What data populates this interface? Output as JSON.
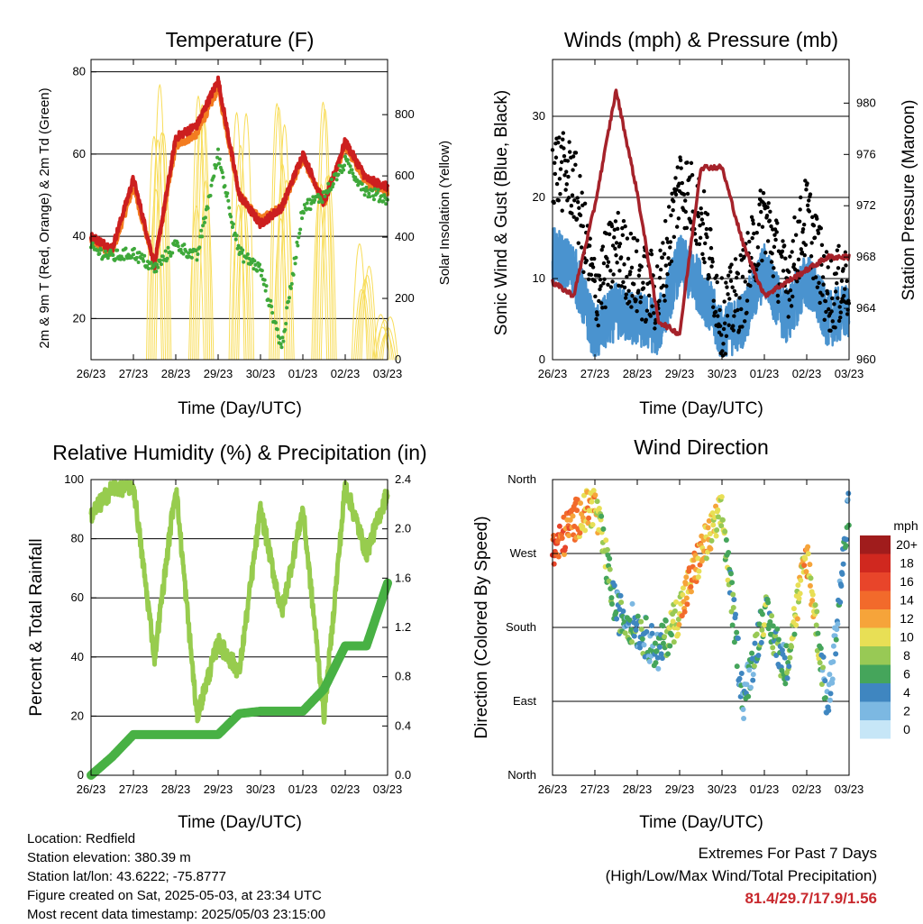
{
  "colors": {
    "temp_2m": "#cc1f1f",
    "temp_9m": "#f37c20",
    "dewpoint": "#3ea83a",
    "solar": "#f8dd5a",
    "wind_speed": "#4a93cf",
    "wind_gust": "#000000",
    "pressure": "#a5222a",
    "rh": "#97cc4e",
    "precip": "#48b144"
  },
  "x_ticks": [
    "26/23",
    "27/23",
    "28/23",
    "29/23",
    "30/23",
    "01/23",
    "02/23",
    "03/23"
  ],
  "panels": {
    "temperature": {
      "title": "Temperature (F)",
      "ylabel_left": "2m & 9m T (Red, Orange) & 2m Td (Green)",
      "ylabel_right": "Solar Insolation (Yellow)",
      "xlabel": "Time (Day/UTC)",
      "left_ticks": [
        "20",
        "40",
        "60",
        "80"
      ],
      "right_ticks": [
        "0",
        "200",
        "400",
        "600",
        "800"
      ]
    },
    "winds": {
      "title": "Winds (mph) & Pressure (mb)",
      "ylabel_left": "Sonic Wind & Gust (Blue, Black)",
      "ylabel_right": "Station Pressure (Maroon)",
      "xlabel": "Time (Day/UTC)",
      "left_ticks": [
        "0",
        "10",
        "20",
        "30"
      ],
      "right_ticks": [
        "960",
        "964",
        "968",
        "972",
        "976",
        "980"
      ]
    },
    "humidity": {
      "title": "Relative Humidity (%) & Precipitation (in)",
      "ylabel_left": "Percent & Total Rainfall",
      "xlabel": "Time (Day/UTC)",
      "left_ticks": [
        "0",
        "20",
        "40",
        "60",
        "80",
        "100"
      ],
      "right_ticks": [
        "0.0",
        "0.4",
        "0.8",
        "1.2",
        "1.6",
        "2.0",
        "2.4"
      ]
    },
    "direction": {
      "title": "Wind Direction",
      "ylabel_left": "Direction (Colored By Speed)",
      "xlabel": "Time (Day/UTC)",
      "left_ticks": [
        "North",
        "East",
        "South",
        "West",
        "North"
      ],
      "legend_title": "mph",
      "legend_labels": [
        "20+",
        "18",
        "16",
        "14",
        "12",
        "10",
        "8",
        "6",
        "4",
        "2",
        "0"
      ],
      "legend_colors": [
        "#a01c1c",
        "#d0281f",
        "#e8452a",
        "#f26a2b",
        "#f6a43a",
        "#e8df55",
        "#98c955",
        "#45a55b",
        "#3f86c0",
        "#7cb8e2",
        "#c6e6f7"
      ]
    }
  },
  "footer": {
    "location": "Location: Redfield",
    "elevation": "Station elevation: 380.39 m",
    "latlon": "Station lat/lon: 43.6222; -75.8777",
    "created": "Figure created on Sat, 2025-05-03, at 23:34 UTC",
    "recent": "Most recent data timestamp: 2025/05/03 23:15:00"
  },
  "extremes": {
    "heading": "Extremes For Past 7 Days",
    "subheading": "(High/Low/Max Wind/Total Precipitation)",
    "values": "81.4/29.7/17.9/1.56"
  },
  "chart_data": [
    {
      "type": "line",
      "title": "Temperature (F)",
      "xlabel": "Time (Day/UTC)",
      "ylabel": "2m & 9m T (Red, Orange) & 2m Td (Green)",
      "ylabel_right": "Solar Insolation (Yellow)",
      "x_days": [
        0,
        0.5,
        1,
        1.5,
        2,
        2.5,
        3,
        3.5,
        4,
        4.5,
        5,
        5.5,
        6,
        6.5,
        7
      ],
      "ylim": [
        10,
        83
      ],
      "ylim_right": [
        0,
        980
      ],
      "series": [
        {
          "name": "2m T",
          "values": [
            40,
            37,
            54,
            33,
            64,
            67,
            78,
            50,
            43,
            47,
            60,
            48,
            63,
            54,
            52
          ]
        },
        {
          "name": "9m T",
          "values": [
            39,
            36,
            52,
            33,
            62,
            65,
            76,
            50,
            44,
            47,
            59,
            48,
            62,
            53,
            51
          ]
        },
        {
          "name": "2m Td",
          "values": [
            37,
            35,
            36,
            32,
            38,
            35,
            60,
            36,
            32,
            13,
            47,
            50,
            58,
            51,
            49
          ]
        },
        {
          "name": "Solar Insolation",
          "values": [
            0,
            0,
            0,
            900,
            0,
            920,
            0,
            910,
            0,
            900,
            0,
            880,
            0,
            420,
            0
          ]
        }
      ]
    },
    {
      "type": "line",
      "title": "Winds (mph) & Pressure (mb)",
      "xlabel": "Time (Day/UTC)",
      "ylabel": "Sonic Wind & Gust (Blue, Black)",
      "ylabel_right": "Station Pressure (Maroon)",
      "x_days": [
        0,
        0.5,
        1,
        1.5,
        2,
        2.5,
        3,
        3.5,
        4,
        4.5,
        5,
        5.5,
        6,
        6.5,
        7
      ],
      "ylim": [
        0,
        37
      ],
      "ylim_right": [
        960,
        983.4
      ],
      "series": [
        {
          "name": "Sonic Wind",
          "values": [
            13,
            11,
            3,
            6,
            5,
            4,
            12,
            9,
            3,
            5,
            11,
            5,
            10,
            5,
            6
          ]
        },
        {
          "name": "Gust",
          "values": [
            24,
            22,
            8,
            14,
            10,
            8,
            22,
            18,
            5,
            9,
            18,
            9,
            18,
            8,
            10
          ]
        },
        {
          "name": "Station Pressure",
          "values": [
            966,
            965,
            972,
            981,
            973,
            963,
            962,
            975,
            975,
            969,
            965,
            966,
            967,
            968,
            968
          ]
        }
      ]
    },
    {
      "type": "line",
      "title": "Relative Humidity (%) & Precipitation (in)",
      "xlabel": "Time (Day/UTC)",
      "ylabel": "Percent & Total Rainfall",
      "x_days": [
        0,
        0.5,
        1,
        1.5,
        2,
        2.5,
        3,
        3.5,
        4,
        4.5,
        5,
        5.5,
        6,
        6.5,
        7
      ],
      "ylim": [
        0,
        100
      ],
      "ylim_right": [
        0,
        2.4
      ],
      "series": [
        {
          "name": "Relative Humidity",
          "values": [
            88,
            97,
            98,
            40,
            98,
            20,
            45,
            35,
            90,
            55,
            90,
            20,
            98,
            75,
            96
          ]
        },
        {
          "name": "Total Precipitation",
          "values": [
            0.0,
            0.15,
            0.33,
            0.33,
            0.33,
            0.33,
            0.33,
            0.5,
            0.52,
            0.52,
            0.52,
            0.7,
            1.05,
            1.05,
            1.56
          ]
        }
      ]
    },
    {
      "type": "scatter",
      "title": "Wind Direction",
      "xlabel": "Time (Day/UTC)",
      "ylabel": "Direction (Colored By Speed)",
      "y_categories": [
        "North",
        "East",
        "South",
        "West",
        "North"
      ],
      "x_days": [
        0,
        0.5,
        1,
        1.5,
        2,
        2.5,
        3,
        3.5,
        4,
        4.5,
        5,
        5.5,
        6,
        6.5,
        7
      ],
      "series": [
        {
          "name": "Direction (deg)",
          "values": [
            270,
            310,
            330,
            200,
            180,
            150,
            200,
            270,
            320,
            90,
            200,
            130,
            270,
            80,
            330
          ]
        },
        {
          "name": "Speed (mph)",
          "values": [
            16,
            13,
            11,
            5,
            5,
            4,
            11,
            12,
            9,
            3,
            7,
            5,
            12,
            3,
            5
          ]
        }
      ]
    }
  ]
}
